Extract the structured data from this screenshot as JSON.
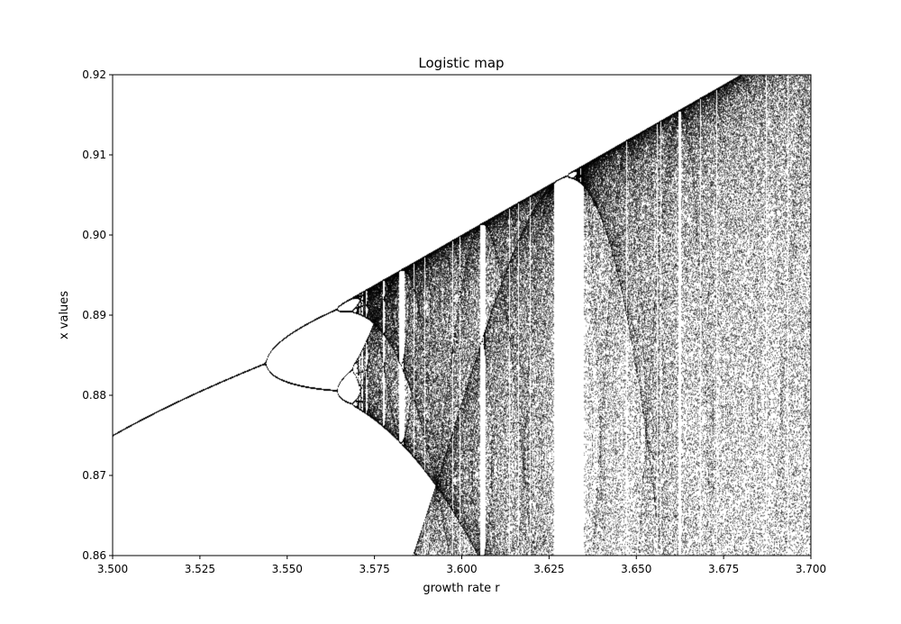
{
  "chart_data": {
    "type": "scatter",
    "title": "Logistic map",
    "xlabel": "growth rate r",
    "ylabel": "x values",
    "xlim": [
      3.5,
      3.7
    ],
    "ylim": [
      0.86,
      0.92
    ],
    "xticks": [
      "3.500",
      "3.525",
      "3.550",
      "3.575",
      "3.600",
      "3.625",
      "3.650",
      "3.675",
      "3.700"
    ],
    "yticks": [
      "0.86",
      "0.87",
      "0.88",
      "0.89",
      "0.90",
      "0.91",
      "0.92"
    ],
    "grid": false,
    "legend": "none",
    "point_color": "#000000",
    "series": [
      {
        "description": "Period-doubling branch (period 2 upper branch, then splits near r=3.545)",
        "x": [
          3.5,
          3.51,
          3.52,
          3.53,
          3.54,
          3.544
        ],
        "y": [
          0.875,
          0.8772,
          0.8794,
          0.8815,
          0.8835,
          0.8842
        ]
      },
      {
        "description": "Period 4 branches (outer pair) after r=3.544",
        "x": [
          3.544,
          3.55,
          3.555,
          3.56,
          3.564
        ],
        "y_upper": [
          0.8842,
          0.8873,
          0.889,
          0.8902,
          0.8908
        ],
        "y_lower": [
          0.8842,
          0.8825,
          0.8815,
          0.881,
          0.8808
        ]
      },
      {
        "description": "Period 8 region near r=3.564–3.570",
        "x": [
          3.564,
          3.567,
          3.57
        ],
        "y_upper_a": [
          0.8908,
          0.8917,
          0.8922
        ],
        "y_upper_b": [
          0.8908,
          0.8905,
          0.8902
        ],
        "y_lower_a": [
          0.8808,
          0.8823,
          0.8838
        ],
        "y_lower_b": [
          0.8808,
          0.8793,
          0.8785
        ]
      },
      {
        "description": "Upper envelope of chaotic region, x_max = r/4",
        "x": [
          3.57,
          3.6,
          3.625,
          3.65,
          3.68,
          3.7
        ],
        "y": [
          0.8925,
          0.9,
          0.9063,
          0.9125,
          0.92,
          0.925
        ]
      },
      {
        "description": "Lower descending boundary curve",
        "x": [
          3.57,
          3.58,
          3.59,
          3.6,
          3.606
        ],
        "y": [
          0.879,
          0.8745,
          0.869,
          0.864,
          0.86
        ]
      },
      {
        "description": "Period-3 window region",
        "x_range": [
          3.627,
          3.636
        ],
        "y_top": 0.9073
      }
    ]
  }
}
